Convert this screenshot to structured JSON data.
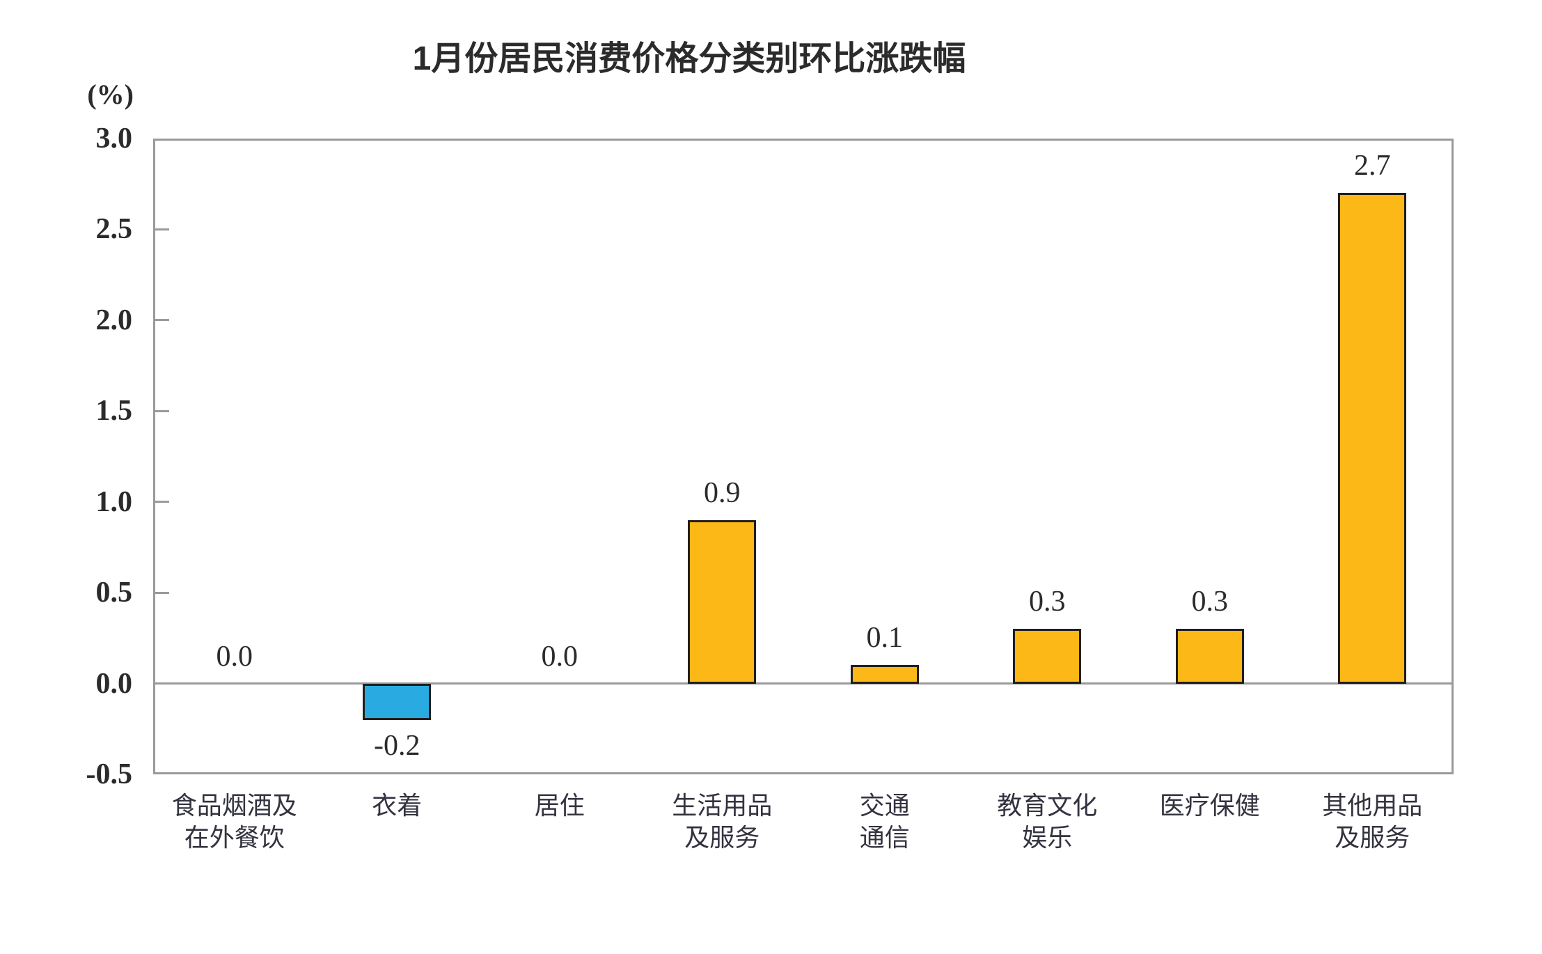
{
  "chart_data": {
    "type": "bar",
    "title": "1月份居民消费价格分类别环比涨跌幅",
    "unit_label": "(%)",
    "categories": [
      "食品烟酒及在外餐饮",
      "衣着",
      "居住",
      "生活用品及服务",
      "交通通信",
      "教育文化娱乐",
      "医疗保健",
      "其他用品及服务"
    ],
    "category_lines": [
      [
        "食品烟酒及",
        "在外餐饮"
      ],
      [
        "衣着"
      ],
      [
        "居住"
      ],
      [
        "生活用品",
        "及服务"
      ],
      [
        "交通",
        "通信"
      ],
      [
        "教育文化",
        "娱乐"
      ],
      [
        "医疗保健"
      ],
      [
        "其他用品",
        "及服务"
      ]
    ],
    "values": [
      0.0,
      -0.2,
      0.0,
      0.9,
      0.1,
      0.3,
      0.3,
      2.7
    ],
    "value_labels": [
      "0.0",
      "-0.2",
      "0.0",
      "0.9",
      "0.1",
      "0.3",
      "0.3",
      "2.7"
    ],
    "xlabel": "",
    "ylabel": "(%)",
    "ylim": [
      -0.5,
      3.0
    ],
    "yticks": [
      3.0,
      2.5,
      2.0,
      1.5,
      1.0,
      0.5,
      0.0,
      -0.5
    ],
    "ytick_labels": [
      "3.0",
      "2.5",
      "2.0",
      "1.5",
      "1.0",
      "0.5",
      "0.0",
      "-0.5"
    ],
    "grid": false,
    "legend": "none",
    "colors": {
      "positive_bar": "#FCB816",
      "negative_bar": "#29ABE2",
      "bar_border": "#221E1C",
      "axis_line": "#9A9A9A",
      "text": "#2B2B2B"
    }
  }
}
